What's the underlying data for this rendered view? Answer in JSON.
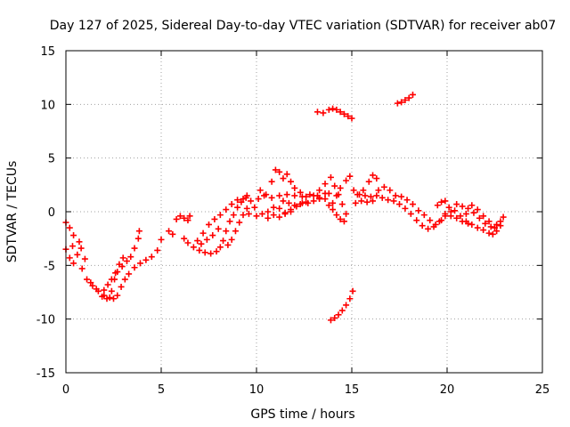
{
  "chart_data": {
    "type": "scatter",
    "title": "Day 127 of 2025, Sidereal Day-to-day VTEC variation (SDTVAR) for receiver ab07",
    "xlabel": "GPS time / hours",
    "ylabel": "SDTVAR / TECUs",
    "xlim": [
      0,
      25
    ],
    "ylim": [
      -15,
      15
    ],
    "xticks": [
      0,
      5,
      10,
      15,
      20,
      25
    ],
    "yticks": [
      -15,
      -10,
      -5,
      0,
      5,
      10,
      15
    ],
    "xtick_labels": [
      "0",
      "5",
      "10",
      "15",
      "20",
      "25"
    ],
    "ytick_labels": [
      "-15",
      "-10",
      "-5",
      "0",
      "5",
      "10",
      "15"
    ],
    "grid": true,
    "marker": "plus",
    "series": [
      {
        "name": "SDTVAR",
        "color": "#ff0000",
        "segments": [
          [
            [
              0.0,
              -1.0
            ],
            [
              0.2,
              -1.5
            ],
            [
              0.4,
              -2.2
            ]
          ],
          [
            [
              0.0,
              -3.5
            ],
            [
              0.2,
              -4.3
            ],
            [
              0.4,
              -4.8
            ]
          ],
          [
            [
              0.35,
              -3.2
            ],
            [
              0.6,
              -4.0
            ],
            [
              0.85,
              -5.3
            ],
            [
              1.1,
              -6.3
            ],
            [
              1.4,
              -6.9
            ],
            [
              1.7,
              -7.4
            ],
            [
              2.0,
              -7.8
            ],
            [
              2.3,
              -8.0
            ],
            [
              2.5,
              -8.1
            ],
            [
              2.7,
              -7.8
            ],
            [
              2.9,
              -7.0
            ],
            [
              3.1,
              -6.3
            ],
            [
              3.3,
              -5.8
            ],
            [
              3.6,
              -5.2
            ],
            [
              3.9,
              -4.8
            ],
            [
              4.2,
              -4.5
            ],
            [
              4.5,
              -4.2
            ],
            [
              4.8,
              -3.6
            ],
            [
              5.0,
              -2.6
            ]
          ],
          [
            [
              1.3,
              -6.6
            ],
            [
              1.6,
              -7.2
            ],
            [
              1.9,
              -7.9
            ],
            [
              2.15,
              -8.1
            ],
            [
              2.4,
              -7.4
            ],
            [
              2.55,
              -6.3
            ],
            [
              2.7,
              -5.6
            ],
            [
              2.95,
              -5.1
            ],
            [
              3.2,
              -4.6
            ],
            [
              3.4,
              -4.2
            ],
            [
              3.6,
              -3.4
            ],
            [
              3.8,
              -2.5
            ],
            [
              3.85,
              -1.8
            ]
          ],
          [
            [
              2.0,
              -7.3
            ],
            [
              2.2,
              -6.8
            ],
            [
              2.4,
              -6.3
            ],
            [
              2.6,
              -5.7
            ],
            [
              2.8,
              -4.9
            ],
            [
              3.0,
              -4.3
            ]
          ],
          [
            [
              0.7,
              -2.8
            ],
            [
              0.8,
              -3.4
            ],
            [
              1.0,
              -4.4
            ]
          ],
          [
            [
              5.4,
              -1.8
            ],
            [
              5.6,
              -2.1
            ],
            [
              5.8,
              -0.7
            ],
            [
              6.0,
              -0.4
            ],
            [
              6.2,
              -0.6
            ],
            [
              6.4,
              -0.8
            ],
            [
              6.5,
              -0.4
            ]
          ],
          [
            [
              6.2,
              -2.5
            ],
            [
              6.4,
              -2.9
            ],
            [
              6.7,
              -3.3
            ],
            [
              7.0,
              -3.6
            ],
            [
              7.3,
              -3.8
            ],
            [
              7.6,
              -3.9
            ],
            [
              7.9,
              -3.7
            ],
            [
              8.1,
              -3.3
            ],
            [
              8.25,
              -2.7
            ],
            [
              8.4,
              -1.8
            ],
            [
              8.6,
              -0.9
            ],
            [
              8.8,
              -0.3
            ],
            [
              9.0,
              0.4
            ],
            [
              9.2,
              0.9
            ],
            [
              9.45,
              1.3
            ],
            [
              9.7,
              1.0
            ]
          ],
          [
            [
              6.9,
              -2.7
            ],
            [
              7.2,
              -2.0
            ],
            [
              7.5,
              -1.2
            ],
            [
              7.8,
              -0.7
            ],
            [
              8.1,
              -0.3
            ],
            [
              8.4,
              0.2
            ],
            [
              8.7,
              0.7
            ],
            [
              9.0,
              1.1
            ],
            [
              9.3,
              1.2
            ],
            [
              9.5,
              1.5
            ]
          ],
          [
            [
              7.1,
              -3.0
            ],
            [
              7.4,
              -2.6
            ],
            [
              7.7,
              -2.2
            ],
            [
              8.0,
              -1.6
            ]
          ],
          [
            [
              8.5,
              -3.1
            ],
            [
              8.7,
              -2.6
            ],
            [
              8.9,
              -1.8
            ],
            [
              9.1,
              -1.0
            ],
            [
              9.3,
              -0.3
            ],
            [
              9.5,
              0.3
            ]
          ],
          [
            [
              9.6,
              -0.2
            ],
            [
              9.9,
              0.4
            ],
            [
              10.1,
              1.2
            ],
            [
              10.4,
              1.5
            ],
            [
              10.8,
              1.3
            ],
            [
              11.2,
              1.5
            ],
            [
              11.6,
              1.6
            ],
            [
              12.0,
              1.5
            ],
            [
              12.4,
              1.4
            ],
            [
              12.8,
              1.6
            ],
            [
              13.2,
              1.5
            ],
            [
              13.6,
              1.7
            ]
          ],
          [
            [
              10.0,
              -0.4
            ],
            [
              10.3,
              -0.2
            ],
            [
              10.6,
              0.0
            ],
            [
              10.9,
              0.4
            ],
            [
              11.2,
              0.3
            ],
            [
              11.5,
              -0.1
            ],
            [
              11.8,
              0.2
            ],
            [
              12.1,
              0.5
            ],
            [
              12.4,
              0.8
            ],
            [
              12.7,
              0.8
            ],
            [
              13.0,
              1.0
            ],
            [
              13.3,
              1.2
            ]
          ],
          [
            [
              10.6,
              -0.6
            ],
            [
              10.9,
              -0.3
            ],
            [
              11.2,
              -0.5
            ],
            [
              11.5,
              -0.2
            ],
            [
              11.8,
              0.0
            ]
          ],
          [
            [
              10.2,
              2.0
            ],
            [
              10.5,
              1.6
            ],
            [
              10.8,
              2.8
            ],
            [
              11.0,
              3.9
            ],
            [
              11.2,
              3.7
            ],
            [
              11.4,
              3.1
            ],
            [
              11.6,
              3.5
            ],
            [
              11.8,
              2.8
            ],
            [
              12.0,
              2.2
            ],
            [
              12.3,
              1.8
            ],
            [
              12.6,
              1.4
            ]
          ],
          [
            [
              11.4,
              1.0
            ],
            [
              11.7,
              0.8
            ],
            [
              12.0,
              0.6
            ],
            [
              12.3,
              0.7
            ],
            [
              12.6,
              0.9
            ]
          ],
          [
            [
              13.3,
              2.0
            ],
            [
              13.6,
              2.6
            ],
            [
              13.9,
              3.2
            ],
            [
              14.1,
              2.4
            ],
            [
              14.3,
              1.6
            ],
            [
              14.5,
              0.7
            ],
            [
              14.7,
              -0.2
            ]
          ],
          [
            [
              13.0,
              1.5
            ],
            [
              13.3,
              1.3
            ],
            [
              13.6,
              1.2
            ],
            [
              13.8,
              1.7
            ]
          ],
          [
            [
              14.0,
              0.8
            ],
            [
              14.2,
              1.5
            ],
            [
              14.4,
              2.2
            ],
            [
              14.7,
              2.9
            ],
            [
              14.9,
              3.3
            ]
          ],
          [
            [
              13.8,
              0.6
            ],
            [
              14.0,
              0.2
            ],
            [
              14.2,
              -0.3
            ],
            [
              14.4,
              -0.7
            ],
            [
              14.6,
              -0.9
            ]
          ],
          [
            [
              13.2,
              9.3
            ],
            [
              13.5,
              9.2
            ],
            [
              13.8,
              9.5
            ],
            [
              14.0,
              9.6
            ],
            [
              14.2,
              9.5
            ],
            [
              14.4,
              9.3
            ],
            [
              14.6,
              9.1
            ],
            [
              14.8,
              8.9
            ],
            [
              15.0,
              8.7
            ]
          ],
          [
            [
              17.4,
              10.1
            ],
            [
              17.6,
              10.2
            ],
            [
              17.8,
              10.4
            ],
            [
              18.0,
              10.6
            ],
            [
              18.2,
              10.9
            ]
          ],
          [
            [
              13.9,
              -10.1
            ],
            [
              14.1,
              -9.9
            ],
            [
              14.3,
              -9.6
            ],
            [
              14.5,
              -9.2
            ],
            [
              14.7,
              -8.7
            ],
            [
              14.9,
              -8.1
            ],
            [
              15.05,
              -7.4
            ]
          ],
          [
            [
              15.1,
              2.0
            ],
            [
              15.4,
              1.6
            ],
            [
              15.7,
              1.5
            ],
            [
              16.0,
              1.4
            ],
            [
              16.3,
              1.5
            ],
            [
              16.6,
              1.3
            ],
            [
              16.9,
              1.1
            ],
            [
              17.2,
              1.0
            ],
            [
              17.5,
              0.7
            ],
            [
              17.8,
              0.3
            ],
            [
              18.1,
              -0.2
            ],
            [
              18.4,
              -0.8
            ],
            [
              18.7,
              -1.3
            ],
            [
              19.0,
              -1.6
            ],
            [
              19.3,
              -1.4
            ],
            [
              19.6,
              -0.9
            ],
            [
              19.9,
              -0.4
            ],
            [
              20.2,
              0.0
            ]
          ],
          [
            [
              15.3,
              1.6
            ],
            [
              15.6,
              2.0
            ],
            [
              15.9,
              2.8
            ],
            [
              16.1,
              3.4
            ],
            [
              16.3,
              3.1
            ]
          ],
          [
            [
              16.4,
              2.0
            ],
            [
              16.7,
              2.3
            ],
            [
              17.0,
              2.0
            ],
            [
              17.3,
              1.5
            ],
            [
              17.6,
              1.4
            ],
            [
              17.9,
              1.1
            ],
            [
              18.2,
              0.7
            ],
            [
              18.5,
              0.1
            ],
            [
              18.8,
              -0.3
            ],
            [
              19.1,
              -0.8
            ],
            [
              19.4,
              -1.2
            ],
            [
              19.7,
              -0.8
            ],
            [
              19.9,
              -0.2
            ]
          ],
          [
            [
              15.2,
              0.8
            ],
            [
              15.5,
              1.0
            ],
            [
              15.8,
              0.9
            ],
            [
              16.1,
              1.0
            ]
          ],
          [
            [
              19.5,
              0.6
            ],
            [
              19.7,
              0.9
            ],
            [
              19.9,
              1.0
            ]
          ],
          [
            [
              20.1,
              0.4
            ],
            [
              20.4,
              0.1
            ],
            [
              20.7,
              -0.4
            ],
            [
              21.0,
              -0.9
            ],
            [
              21.3,
              -1.2
            ],
            [
              21.6,
              -1.5
            ],
            [
              21.9,
              -1.7
            ],
            [
              22.2,
              -2.0
            ],
            [
              22.4,
              -2.1
            ],
            [
              22.6,
              -1.8
            ],
            [
              22.8,
              -1.3
            ],
            [
              22.95,
              -0.5
            ]
          ],
          [
            [
              20.5,
              0.7
            ],
            [
              20.8,
              0.5
            ],
            [
              21.1,
              0.3
            ],
            [
              21.4,
              -0.1
            ],
            [
              21.7,
              -0.6
            ],
            [
              22.0,
              -1.1
            ],
            [
              22.3,
              -1.4
            ],
            [
              22.6,
              -1.2
            ],
            [
              22.8,
              -0.9
            ]
          ],
          [
            [
              21.0,
              -0.2
            ],
            [
              21.3,
              0.6
            ],
            [
              21.6,
              0.2
            ],
            [
              21.9,
              -0.4
            ],
            [
              22.2,
              -0.9
            ],
            [
              22.5,
              -1.5
            ]
          ],
          [
            [
              20.2,
              -0.4
            ],
            [
              20.5,
              -0.6
            ],
            [
              20.8,
              -0.9
            ],
            [
              21.1,
              -1.1
            ]
          ]
        ]
      }
    ]
  }
}
